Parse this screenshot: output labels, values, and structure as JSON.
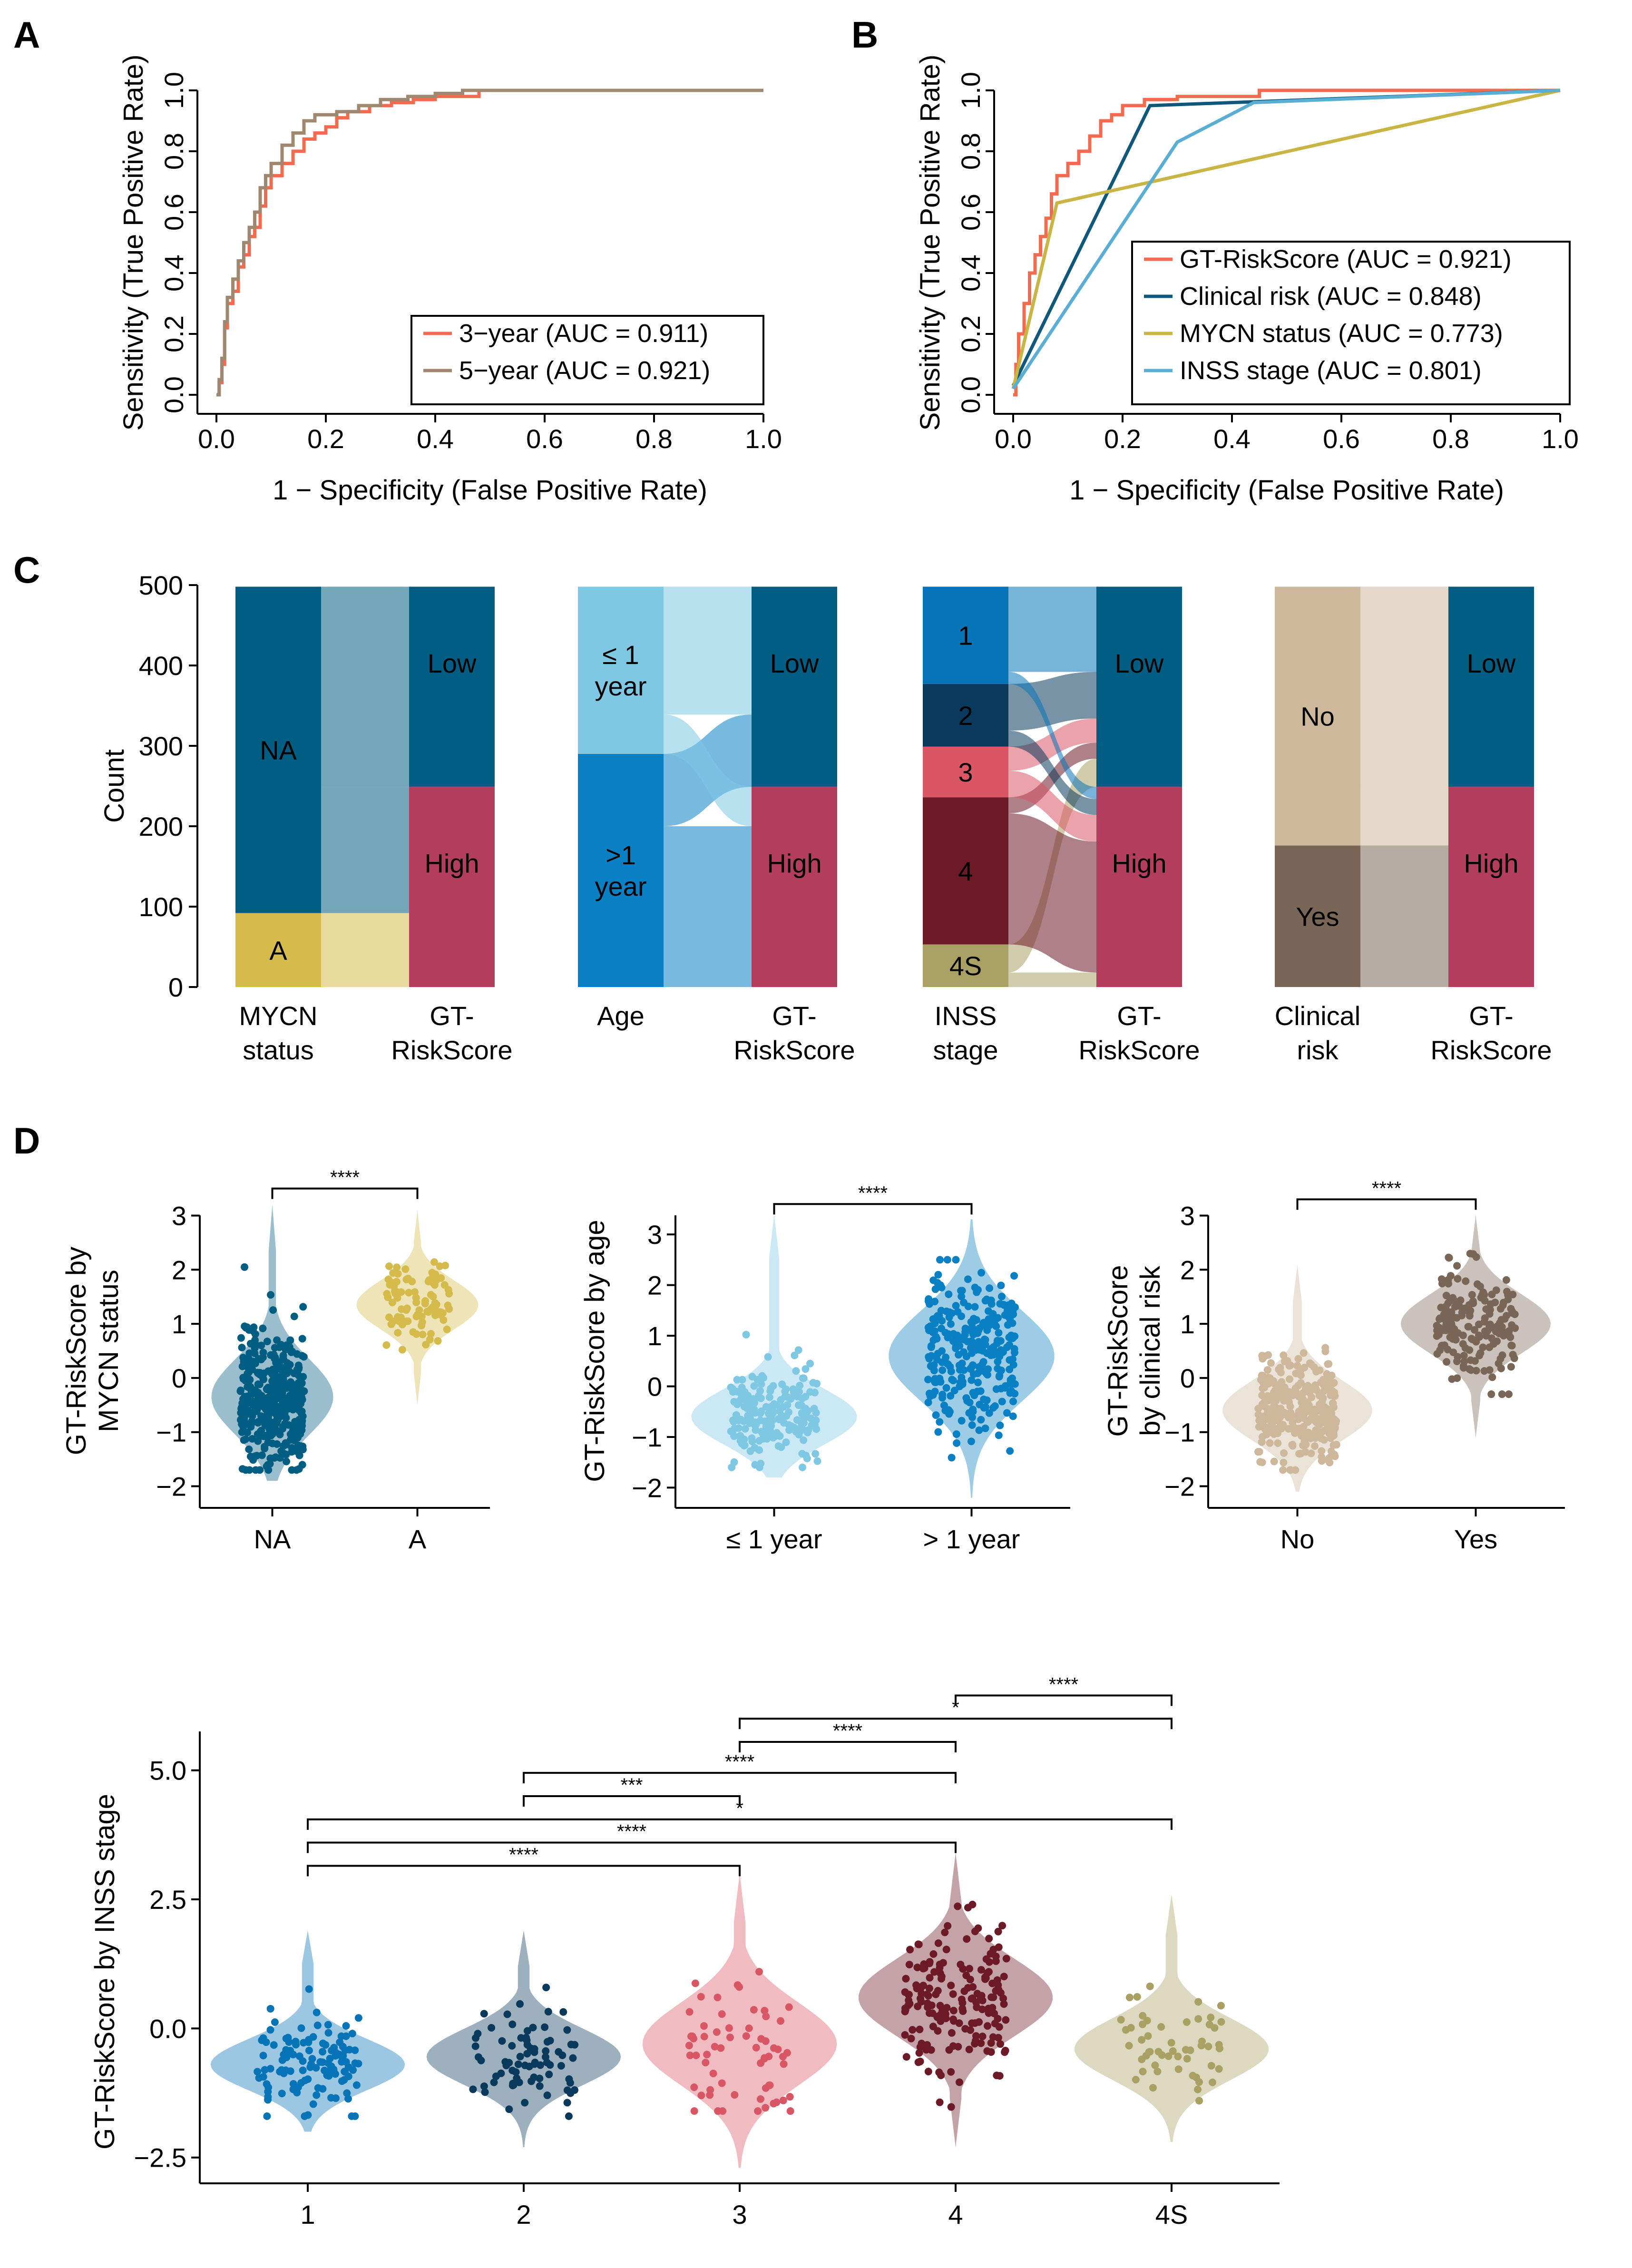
{
  "panels": {
    "A": "A",
    "B": "B",
    "C": "C",
    "D": "D"
  },
  "colors": {
    "red": "#f26b4f",
    "tan": "#a08770",
    "navy": "#0f587c",
    "olive": "#c8b544",
    "lightblue": "#5aaed4",
    "mycn_na": "#025d82",
    "mycn_a": "#d4bb4b",
    "age_le1": "#7ec8e3",
    "age_gt1": "#0a80c4",
    "gt_low": "#025d82",
    "gt_high": "#b23d5c",
    "inss_1": "#0874b8",
    "inss_2": "#093a5c",
    "inss_3": "#d95765",
    "inss_4": "#6b1a26",
    "inss_4S": "#a9a064",
    "clin_no": "#cdb89c",
    "clin_yes": "#7a6656"
  },
  "chart_data": [
    {
      "id": "A",
      "type": "line",
      "xlabel": "1 − Specificity (False Positive Rate)",
      "ylabel": "Sensitivity (True Positive Rate)",
      "xlim": [
        0,
        1
      ],
      "ylim": [
        0,
        1
      ],
      "xticks": [
        "0.0",
        "0.2",
        "0.4",
        "0.6",
        "0.8",
        "1.0"
      ],
      "yticks": [
        "0.0",
        "0.2",
        "0.4",
        "0.6",
        "0.8",
        "1.0"
      ],
      "legend": "bottom-right",
      "series": [
        {
          "name": "3−year (AUC = 0.911)",
          "color": "#f26b4f",
          "x": [
            0,
            0.005,
            0.01,
            0.015,
            0.02,
            0.03,
            0.04,
            0.05,
            0.06,
            0.07,
            0.08,
            0.09,
            0.1,
            0.12,
            0.14,
            0.16,
            0.18,
            0.2,
            0.22,
            0.24,
            0.28,
            0.32,
            0.36,
            0.4,
            0.48,
            1.0
          ],
          "y": [
            0,
            0.04,
            0.1,
            0.22,
            0.3,
            0.34,
            0.42,
            0.46,
            0.52,
            0.55,
            0.62,
            0.68,
            0.72,
            0.76,
            0.8,
            0.84,
            0.86,
            0.88,
            0.91,
            0.93,
            0.95,
            0.96,
            0.97,
            0.98,
            1.0,
            1.0
          ]
        },
        {
          "name": "5−year (AUC = 0.921)",
          "color": "#a08770",
          "x": [
            0,
            0.005,
            0.01,
            0.015,
            0.02,
            0.03,
            0.04,
            0.05,
            0.06,
            0.07,
            0.08,
            0.09,
            0.1,
            0.12,
            0.14,
            0.16,
            0.18,
            0.22,
            0.26,
            0.3,
            0.35,
            0.4,
            0.45,
            1.0
          ],
          "y": [
            0,
            0.05,
            0.12,
            0.24,
            0.32,
            0.38,
            0.44,
            0.5,
            0.55,
            0.6,
            0.68,
            0.72,
            0.76,
            0.82,
            0.86,
            0.9,
            0.92,
            0.93,
            0.95,
            0.97,
            0.98,
            0.99,
            1.0,
            1.0
          ]
        }
      ]
    },
    {
      "id": "B",
      "type": "line",
      "xlabel": "1 − Specificity (False Positive Rate)",
      "ylabel": "Sensitivity (True Positive Rate)",
      "xlim": [
        0,
        1
      ],
      "ylim": [
        0,
        1
      ],
      "xticks": [
        "0.0",
        "0.2",
        "0.4",
        "0.6",
        "0.8",
        "1.0"
      ],
      "yticks": [
        "0.0",
        "0.2",
        "0.4",
        "0.6",
        "0.8",
        "1.0"
      ],
      "legend": "bottom-right",
      "series": [
        {
          "name": "GT-RiskScore (AUC = 0.921)",
          "color": "#f26b4f",
          "x": [
            0,
            0.005,
            0.01,
            0.02,
            0.03,
            0.04,
            0.05,
            0.06,
            0.07,
            0.08,
            0.1,
            0.12,
            0.14,
            0.16,
            0.18,
            0.2,
            0.24,
            0.3,
            0.45,
            1.0
          ],
          "y": [
            0,
            0.1,
            0.2,
            0.3,
            0.4,
            0.46,
            0.52,
            0.58,
            0.66,
            0.72,
            0.76,
            0.8,
            0.85,
            0.9,
            0.92,
            0.95,
            0.97,
            0.98,
            1.0,
            1.0
          ]
        },
        {
          "name": "Clinical risk (AUC = 0.848)",
          "color": "#0f587c",
          "x": [
            0,
            0.25,
            1.0
          ],
          "y": [
            0.03,
            0.95,
            1.0
          ]
        },
        {
          "name": "MYCN status (AUC = 0.773)",
          "color": "#c8b544",
          "x": [
            0,
            0.08,
            1.0
          ],
          "y": [
            0.02,
            0.63,
            1.0
          ]
        },
        {
          "name": "INSS stage (AUC = 0.801)",
          "color": "#5aaed4",
          "x": [
            0,
            0.3,
            0.44,
            1.0
          ],
          "y": [
            0.02,
            0.83,
            0.96,
            1.0
          ]
        }
      ]
    },
    {
      "id": "C",
      "type": "alluvial",
      "ylabel": "Count",
      "ylim": [
        0,
        500
      ],
      "yticks": [
        "0",
        "100",
        "200",
        "300",
        "400",
        "500"
      ],
      "groups": [
        {
          "axis1": [
            "MYCN",
            "status"
          ],
          "axis2": [
            "GT-",
            "RiskScore"
          ],
          "left": [
            {
              "label": [
                "A"
              ],
              "count": 92,
              "color": "mycn_a"
            },
            {
              "label": [
                "NA"
              ],
              "count": 406,
              "color": "mycn_na"
            }
          ],
          "right": [
            {
              "label": [
                "High"
              ],
              "count": 249,
              "color": "gt_high"
            },
            {
              "label": [
                "Low"
              ],
              "count": 249,
              "color": "gt_low"
            }
          ],
          "flows": [
            {
              "from": 0,
              "to": 0,
              "count": 92
            },
            {
              "from": 1,
              "to": 0,
              "count": 157
            },
            {
              "from": 1,
              "to": 1,
              "count": 249
            }
          ]
        },
        {
          "axis1": [
            "Age"
          ],
          "axis2": [
            "GT-",
            "RiskScore"
          ],
          "left": [
            {
              "label": [
                ">1",
                "year"
              ],
              "count": 290,
              "color": "age_gt1"
            },
            {
              "label": [
                "≤ 1",
                "year"
              ],
              "count": 208,
              "color": "age_le1"
            }
          ],
          "right": [
            {
              "label": [
                "High"
              ],
              "count": 249,
              "color": "gt_high"
            },
            {
              "label": [
                "Low"
              ],
              "count": 249,
              "color": "gt_low"
            }
          ],
          "flows": [
            {
              "from": 0,
              "to": 0,
              "count": 200
            },
            {
              "from": 0,
              "to": 1,
              "count": 90
            },
            {
              "from": 1,
              "to": 0,
              "count": 49
            },
            {
              "from": 1,
              "to": 1,
              "count": 159
            }
          ]
        },
        {
          "axis1": [
            "INSS",
            "stage"
          ],
          "axis2": [
            "GT-",
            "RiskScore"
          ],
          "left": [
            {
              "label": [
                "4S"
              ],
              "count": 53,
              "color": "inss_4S"
            },
            {
              "label": [
                "4"
              ],
              "count": 183,
              "color": "inss_4"
            },
            {
              "label": [
                "3"
              ],
              "count": 63,
              "color": "inss_3"
            },
            {
              "label": [
                "2"
              ],
              "count": 78,
              "color": "inss_2"
            },
            {
              "label": [
                "1"
              ],
              "count": 121,
              "color": "inss_1"
            }
          ],
          "right": [
            {
              "label": [
                "High"
              ],
              "count": 249,
              "color": "gt_high"
            },
            {
              "label": [
                "Low"
              ],
              "count": 249,
              "color": "gt_low"
            }
          ],
          "flows": [
            {
              "from": 0,
              "to": 0,
              "count": 18
            },
            {
              "from": 0,
              "to": 1,
              "count": 35
            },
            {
              "from": 1,
              "to": 0,
              "count": 163
            },
            {
              "from": 1,
              "to": 1,
              "count": 20
            },
            {
              "from": 2,
              "to": 0,
              "count": 33
            },
            {
              "from": 2,
              "to": 1,
              "count": 30
            },
            {
              "from": 3,
              "to": 0,
              "count": 20
            },
            {
              "from": 3,
              "to": 1,
              "count": 58
            },
            {
              "from": 4,
              "to": 0,
              "count": 15
            },
            {
              "from": 4,
              "to": 1,
              "count": 106
            }
          ]
        },
        {
          "axis1": [
            "Clinical",
            "risk"
          ],
          "axis2": [
            "GT-",
            "RiskScore"
          ],
          "left": [
            {
              "label": [
                "Yes"
              ],
              "count": 176,
              "color": "clin_yes"
            },
            {
              "label": [
                "No"
              ],
              "count": 322,
              "color": "clin_no"
            }
          ],
          "right": [
            {
              "label": [
                "High"
              ],
              "count": 249,
              "color": "gt_high"
            },
            {
              "label": [
                "Low"
              ],
              "count": 249,
              "color": "gt_low"
            }
          ],
          "flows": [
            {
              "from": 0,
              "to": 0,
              "count": 176
            },
            {
              "from": 1,
              "to": 0,
              "count": 73
            },
            {
              "from": 1,
              "to": 1,
              "count": 249
            }
          ]
        }
      ]
    },
    {
      "id": "D1",
      "type": "violin",
      "ylabel": [
        "GT-RiskScore by",
        "MYCN status"
      ],
      "ylim": [
        -2.4,
        3.4
      ],
      "yticks": [
        {
          "v": -2,
          "t": "−2"
        },
        {
          "v": -1,
          "t": "−1"
        },
        {
          "v": 0,
          "t": "0"
        },
        {
          "v": 1,
          "t": "1"
        },
        {
          "v": 2,
          "t": "2"
        },
        {
          "v": 3,
          "t": "3"
        }
      ],
      "categories": [
        {
          "label": "NA",
          "color": "mycn_na",
          "min": -1.9,
          "max": 3.2,
          "mode": -0.35,
          "sd": 0.7,
          "n": 400,
          "ptmin": -1.7,
          "ptmax": 2.4
        },
        {
          "label": "A",
          "color": "mycn_a",
          "min": -0.5,
          "max": 3.1,
          "mode": 1.35,
          "sd": 0.45,
          "n": 90,
          "ptmin": 0.3,
          "ptmax": 2.4
        }
      ],
      "comparisons": [
        {
          "a": 0,
          "b": 1,
          "label": "****",
          "y": 3.5
        }
      ]
    },
    {
      "id": "D2",
      "type": "violin",
      "ylabel": [
        "GT-RiskScore by age"
      ],
      "ylim": [
        -2.4,
        3.8
      ],
      "yticks": [
        {
          "v": -2,
          "t": "−2"
        },
        {
          "v": -1,
          "t": "−1"
        },
        {
          "v": 0,
          "t": "0"
        },
        {
          "v": 1,
          "t": "1"
        },
        {
          "v": 2,
          "t": "2"
        },
        {
          "v": 3,
          "t": "3"
        }
      ],
      "categories": [
        {
          "label": "≤ 1 year",
          "color": "age_le1",
          "min": -1.8,
          "max": 3.4,
          "mode": -0.6,
          "sd": 0.55,
          "n": 200,
          "ptmin": -1.6,
          "ptmax": 2.0
        },
        {
          "label": "> 1 year",
          "color": "age_gt1",
          "min": -2.2,
          "max": 3.3,
          "mode": 0.6,
          "sd": 0.9,
          "n": 290,
          "ptmin": -1.9,
          "ptmax": 2.5
        }
      ],
      "comparisons": [
        {
          "a": 0,
          "b": 1,
          "label": "****",
          "y": 3.6
        }
      ]
    },
    {
      "id": "D3",
      "type": "violin",
      "ylabel": [
        "GT-RiskScore",
        "by clinical risk"
      ],
      "ylim": [
        -2.4,
        3.4
      ],
      "yticks": [
        {
          "v": -2,
          "t": "−2"
        },
        {
          "v": -1,
          "t": "−1"
        },
        {
          "v": 0,
          "t": "0"
        },
        {
          "v": 1,
          "t": "1"
        },
        {
          "v": 2,
          "t": "2"
        },
        {
          "v": 3,
          "t": "3"
        }
      ],
      "categories": [
        {
          "label": "No",
          "color": "clin_no",
          "min": -2.1,
          "max": 2.1,
          "mode": -0.6,
          "sd": 0.55,
          "n": 320,
          "ptmin": -1.7,
          "ptmax": 1.8
        },
        {
          "label": "Yes",
          "color": "clin_yes",
          "min": -1.1,
          "max": 3.0,
          "mode": 1.0,
          "sd": 0.55,
          "n": 175,
          "ptmin": -0.3,
          "ptmax": 2.4
        }
      ],
      "comparisons": [
        {
          "a": 0,
          "b": 1,
          "label": "****",
          "y": 3.3
        }
      ]
    },
    {
      "id": "D4",
      "type": "violin",
      "ylabel": [
        "GT-RiskScore by INSS stage"
      ],
      "ylim": [
        -3.0,
        5.2
      ],
      "yticks": [
        {
          "v": -2.5,
          "t": "−2.5"
        },
        {
          "v": 0,
          "t": "0.0"
        },
        {
          "v": 2.5,
          "t": "2.5"
        },
        {
          "v": 5,
          "t": "5.0"
        }
      ],
      "categories": [
        {
          "label": "1",
          "color": "inss_1",
          "min": -2.0,
          "max": 1.9,
          "mode": -0.7,
          "sd": 0.5,
          "n": 120,
          "ptmin": -1.7,
          "ptmax": 1.4
        },
        {
          "label": "2",
          "color": "inss_2",
          "min": -2.3,
          "max": 1.9,
          "mode": -0.55,
          "sd": 0.55,
          "n": 78,
          "ptmin": -1.7,
          "ptmax": 1.1
        },
        {
          "label": "3",
          "color": "inss_3",
          "min": -2.7,
          "max": 3.0,
          "mode": -0.3,
          "sd": 0.8,
          "n": 63,
          "ptmin": -1.6,
          "ptmax": 1.9
        },
        {
          "label": "4",
          "color": "inss_4",
          "min": -2.3,
          "max": 3.4,
          "mode": 0.6,
          "sd": 0.75,
          "n": 180,
          "ptmin": -1.7,
          "ptmax": 2.4
        },
        {
          "label": "4S",
          "color": "inss_4S",
          "min": -2.2,
          "max": 2.6,
          "mode": -0.4,
          "sd": 0.6,
          "n": 53,
          "ptmin": -1.4,
          "ptmax": 1.3
        }
      ],
      "comparisons": [
        {
          "a": 0,
          "b": 2,
          "label": "****",
          "y": 3.15
        },
        {
          "a": 0,
          "b": 3,
          "label": "****",
          "y": 3.6
        },
        {
          "a": 0,
          "b": 4,
          "label": "*",
          "y": 4.05
        },
        {
          "a": 1,
          "b": 2,
          "label": "***",
          "y": 4.5
        },
        {
          "a": 1,
          "b": 3,
          "label": "****",
          "y": 4.95
        },
        {
          "a": 2,
          "b": 3,
          "label": "****",
          "y": 5.55
        },
        {
          "a": 2,
          "b": 4,
          "label": "*",
          "y": 6.0
        },
        {
          "a": 3,
          "b": 4,
          "label": "****",
          "y": 6.45
        }
      ]
    }
  ]
}
